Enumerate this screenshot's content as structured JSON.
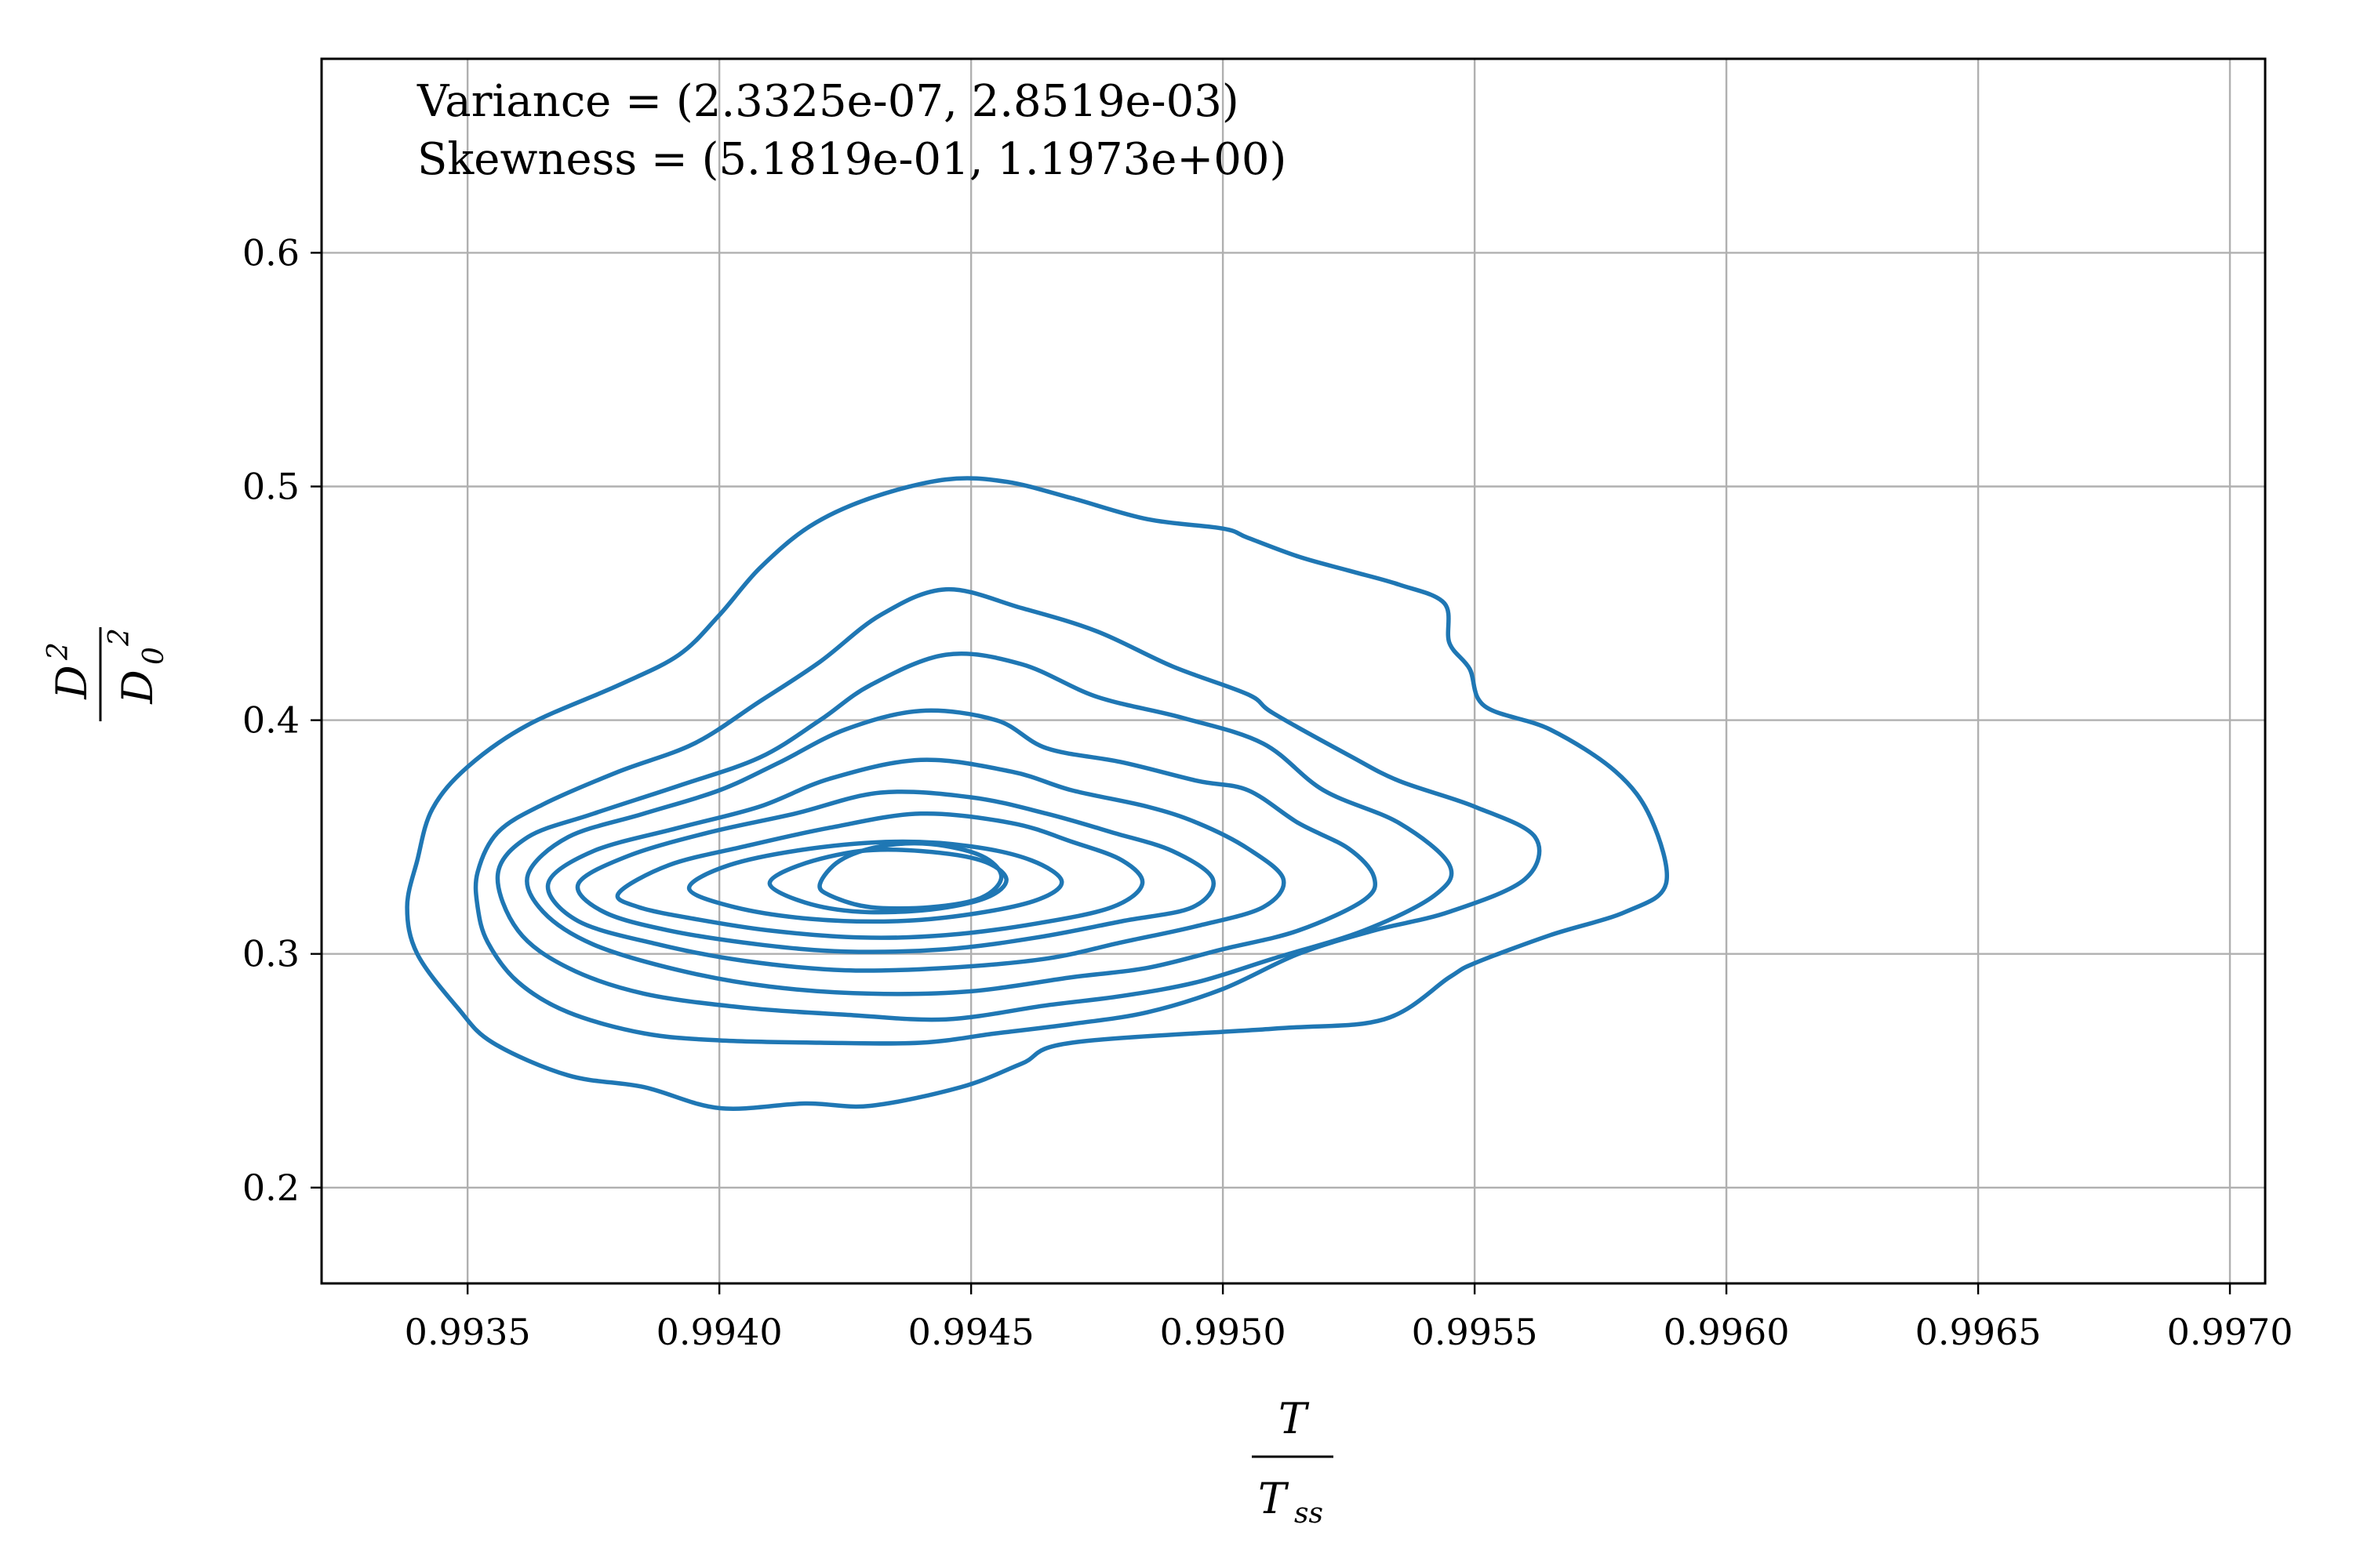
{
  "chart_data": {
    "type": "contour",
    "title": "",
    "xlabel": {
      "numerator": "T",
      "denominator": "T",
      "denominator_sub": "ss"
    },
    "ylabel": {
      "numerator": "D",
      "numerator_sup": "2",
      "denominator": "D",
      "denominator_sub": "0",
      "denominator_sup": "2"
    },
    "xlim": [
      0.99321,
      0.99707
    ],
    "ylim": [
      0.159,
      0.683
    ],
    "xticks": [
      0.9935,
      0.994,
      0.9945,
      0.995,
      0.9955,
      0.996,
      0.9965,
      0.997
    ],
    "xtick_labels": [
      "0.9935",
      "0.9940",
      "0.9945",
      "0.9950",
      "0.9955",
      "0.9960",
      "0.9965",
      "0.9970"
    ],
    "yticks": [
      0.2,
      0.3,
      0.4,
      0.5,
      0.6
    ],
    "ytick_labels": [
      "0.2",
      "0.3",
      "0.4",
      "0.5",
      "0.6"
    ],
    "grid": true,
    "annotations": [
      "Variance = (2.3325e-07, 2.8519e-03)",
      "Skewness = (5.1819e-01, 1.1973e+00)"
    ],
    "series_color": "#1f77b4",
    "contour_levels": [
      {
        "level": 1,
        "points": [
          [
            0.9934,
            0.34
          ],
          [
            0.99343,
            0.362
          ],
          [
            0.9935,
            0.38
          ],
          [
            0.99362,
            0.398
          ],
          [
            0.9938,
            0.415
          ],
          [
            0.99392,
            0.428
          ],
          [
            0.994,
            0.445
          ],
          [
            0.99408,
            0.465
          ],
          [
            0.99418,
            0.483
          ],
          [
            0.9943,
            0.495
          ],
          [
            0.99445,
            0.503
          ],
          [
            0.99457,
            0.502
          ],
          [
            0.9947,
            0.495
          ],
          [
            0.99485,
            0.486
          ],
          [
            0.995,
            0.482
          ],
          [
            0.99505,
            0.478
          ],
          [
            0.99515,
            0.47
          ],
          [
            0.99525,
            0.464
          ],
          [
            0.99535,
            0.458
          ],
          [
            0.99544,
            0.45
          ],
          [
            0.99545,
            0.433
          ],
          [
            0.99549,
            0.422
          ],
          [
            0.99552,
            0.406
          ],
          [
            0.99565,
            0.396
          ],
          [
            0.99578,
            0.378
          ],
          [
            0.99585,
            0.358
          ],
          [
            0.99588,
            0.33
          ],
          [
            0.9958,
            0.318
          ],
          [
            0.99565,
            0.308
          ],
          [
            0.9955,
            0.296
          ],
          [
            0.99545,
            0.29
          ],
          [
            0.99532,
            0.272
          ],
          [
            0.9951,
            0.268
          ],
          [
            0.9947,
            0.262
          ],
          [
            0.9946,
            0.253
          ],
          [
            0.99448,
            0.243
          ],
          [
            0.9943,
            0.235
          ],
          [
            0.99417,
            0.236
          ],
          [
            0.994,
            0.234
          ],
          [
            0.99385,
            0.243
          ],
          [
            0.9937,
            0.248
          ],
          [
            0.99355,
            0.262
          ],
          [
            0.99348,
            0.277
          ],
          [
            0.9934,
            0.3
          ],
          [
            0.99338,
            0.32
          ],
          [
            0.9934,
            0.34
          ]
        ]
      },
      {
        "level": 2,
        "points": [
          [
            0.99352,
            0.335
          ],
          [
            0.99356,
            0.352
          ],
          [
            0.99365,
            0.364
          ],
          [
            0.9938,
            0.378
          ],
          [
            0.99395,
            0.39
          ],
          [
            0.99408,
            0.408
          ],
          [
            0.9942,
            0.425
          ],
          [
            0.99432,
            0.445
          ],
          [
            0.99445,
            0.456
          ],
          [
            0.9946,
            0.448
          ],
          [
            0.99475,
            0.438
          ],
          [
            0.9949,
            0.423
          ],
          [
            0.99505,
            0.411
          ],
          [
            0.9951,
            0.403
          ],
          [
            0.99525,
            0.385
          ],
          [
            0.99535,
            0.374
          ],
          [
            0.9955,
            0.363
          ],
          [
            0.99562,
            0.35
          ],
          [
            0.9956,
            0.332
          ],
          [
            0.99545,
            0.318
          ],
          [
            0.9953,
            0.31
          ],
          [
            0.99515,
            0.3
          ],
          [
            0.995,
            0.285
          ],
          [
            0.99485,
            0.275
          ],
          [
            0.9947,
            0.27
          ],
          [
            0.99455,
            0.266
          ],
          [
            0.9944,
            0.262
          ],
          [
            0.9942,
            0.262
          ],
          [
            0.994,
            0.263
          ],
          [
            0.99385,
            0.266
          ],
          [
            0.9937,
            0.275
          ],
          [
            0.9936,
            0.288
          ],
          [
            0.99354,
            0.305
          ],
          [
            0.99352,
            0.32
          ],
          [
            0.99352,
            0.335
          ]
        ]
      },
      {
        "level": 3,
        "points": [
          [
            0.99356,
            0.334
          ],
          [
            0.99362,
            0.35
          ],
          [
            0.99375,
            0.36
          ],
          [
            0.99392,
            0.372
          ],
          [
            0.99408,
            0.384
          ],
          [
            0.9942,
            0.4
          ],
          [
            0.9943,
            0.415
          ],
          [
            0.99445,
            0.428
          ],
          [
            0.9946,
            0.424
          ],
          [
            0.99475,
            0.41
          ],
          [
            0.99492,
            0.401
          ],
          [
            0.99508,
            0.39
          ],
          [
            0.9952,
            0.37
          ],
          [
            0.99535,
            0.356
          ],
          [
            0.99545,
            0.338
          ],
          [
            0.99542,
            0.325
          ],
          [
            0.99528,
            0.31
          ],
          [
            0.9951,
            0.298
          ],
          [
            0.99495,
            0.288
          ],
          [
            0.9948,
            0.282
          ],
          [
            0.99465,
            0.278
          ],
          [
            0.99445,
            0.272
          ],
          [
            0.99425,
            0.274
          ],
          [
            0.99405,
            0.277
          ],
          [
            0.99385,
            0.283
          ],
          [
            0.9937,
            0.294
          ],
          [
            0.9936,
            0.31
          ],
          [
            0.99356,
            0.334
          ]
        ]
      },
      {
        "level": 4,
        "points": [
          [
            0.99362,
            0.334
          ],
          [
            0.9937,
            0.35
          ],
          [
            0.99385,
            0.36
          ],
          [
            0.994,
            0.37
          ],
          [
            0.99412,
            0.382
          ],
          [
            0.99425,
            0.396
          ],
          [
            0.9944,
            0.404
          ],
          [
            0.99455,
            0.4
          ],
          [
            0.99465,
            0.388
          ],
          [
            0.9948,
            0.382
          ],
          [
            0.99495,
            0.374
          ],
          [
            0.99505,
            0.37
          ],
          [
            0.99515,
            0.356
          ],
          [
            0.99525,
            0.345
          ],
          [
            0.9953,
            0.333
          ],
          [
            0.99528,
            0.323
          ],
          [
            0.99515,
            0.31
          ],
          [
            0.995,
            0.302
          ],
          [
            0.99485,
            0.294
          ],
          [
            0.9947,
            0.29
          ],
          [
            0.9945,
            0.284
          ],
          [
            0.9943,
            0.283
          ],
          [
            0.9941,
            0.286
          ],
          [
            0.99392,
            0.293
          ],
          [
            0.99375,
            0.304
          ],
          [
            0.99365,
            0.318
          ],
          [
            0.99362,
            0.334
          ]
        ]
      },
      {
        "level": 5,
        "points": [
          [
            0.99366,
            0.33
          ],
          [
            0.99375,
            0.344
          ],
          [
            0.99392,
            0.354
          ],
          [
            0.99408,
            0.363
          ],
          [
            0.99422,
            0.375
          ],
          [
            0.9944,
            0.383
          ],
          [
            0.99458,
            0.378
          ],
          [
            0.9947,
            0.37
          ],
          [
            0.99485,
            0.363
          ],
          [
            0.99495,
            0.356
          ],
          [
            0.99505,
            0.345
          ],
          [
            0.99512,
            0.332
          ],
          [
            0.99508,
            0.32
          ],
          [
            0.99495,
            0.312
          ],
          [
            0.9948,
            0.305
          ],
          [
            0.99465,
            0.298
          ],
          [
            0.99445,
            0.294
          ],
          [
            0.99425,
            0.293
          ],
          [
            0.99405,
            0.297
          ],
          [
            0.99388,
            0.304
          ],
          [
            0.99372,
            0.314
          ],
          [
            0.99366,
            0.33
          ]
        ]
      },
      {
        "level": 6,
        "points": [
          [
            0.99372,
            0.33
          ],
          [
            0.99382,
            0.342
          ],
          [
            0.99398,
            0.352
          ],
          [
            0.99415,
            0.36
          ],
          [
            0.99432,
            0.369
          ],
          [
            0.9945,
            0.367
          ],
          [
            0.99465,
            0.36
          ],
          [
            0.99478,
            0.352
          ],
          [
            0.9949,
            0.344
          ],
          [
            0.99498,
            0.332
          ],
          [
            0.99494,
            0.32
          ],
          [
            0.9948,
            0.314
          ],
          [
            0.99463,
            0.307
          ],
          [
            0.99445,
            0.302
          ],
          [
            0.99425,
            0.301
          ],
          [
            0.99408,
            0.304
          ],
          [
            0.9939,
            0.31
          ],
          [
            0.99377,
            0.318
          ],
          [
            0.99372,
            0.33
          ]
        ]
      },
      {
        "level": 7,
        "points": [
          [
            0.9938,
            0.326
          ],
          [
            0.9939,
            0.338
          ],
          [
            0.99405,
            0.346
          ],
          [
            0.99422,
            0.354
          ],
          [
            0.9944,
            0.36
          ],
          [
            0.99458,
            0.356
          ],
          [
            0.9947,
            0.348
          ],
          [
            0.9948,
            0.34
          ],
          [
            0.99484,
            0.33
          ],
          [
            0.99478,
            0.32
          ],
          [
            0.99463,
            0.313
          ],
          [
            0.99445,
            0.308
          ],
          [
            0.99428,
            0.307
          ],
          [
            0.9941,
            0.31
          ],
          [
            0.99395,
            0.315
          ],
          [
            0.99384,
            0.32
          ],
          [
            0.9938,
            0.326
          ]
        ]
      },
      {
        "level": 8,
        "points": [
          [
            0.99394,
            0.328
          ],
          [
            0.99402,
            0.338
          ],
          [
            0.99418,
            0.345
          ],
          [
            0.99435,
            0.348
          ],
          [
            0.9945,
            0.346
          ],
          [
            0.99462,
            0.34
          ],
          [
            0.99468,
            0.331
          ],
          [
            0.99463,
            0.323
          ],
          [
            0.9945,
            0.317
          ],
          [
            0.99435,
            0.314
          ],
          [
            0.99418,
            0.315
          ],
          [
            0.99403,
            0.32
          ],
          [
            0.99394,
            0.328
          ]
        ]
      },
      {
        "level": 9,
        "points": [
          [
            0.9941,
            0.33
          ],
          [
            0.99416,
            0.338
          ],
          [
            0.99428,
            0.344
          ],
          [
            0.9944,
            0.344
          ],
          [
            0.99452,
            0.34
          ],
          [
            0.99457,
            0.332
          ],
          [
            0.99453,
            0.324
          ],
          [
            0.99442,
            0.319
          ],
          [
            0.99428,
            0.318
          ],
          [
            0.99417,
            0.322
          ],
          [
            0.9941,
            0.33
          ]
        ]
      },
      {
        "level": 10,
        "points": [
          [
            0.9942,
            0.33
          ],
          [
            0.99424,
            0.34
          ],
          [
            0.99432,
            0.346
          ],
          [
            0.99442,
            0.347
          ],
          [
            0.99452,
            0.342
          ],
          [
            0.99456,
            0.333
          ],
          [
            0.99452,
            0.324
          ],
          [
            0.99442,
            0.32
          ],
          [
            0.9943,
            0.32
          ],
          [
            0.99422,
            0.325
          ],
          [
            0.9942,
            0.33
          ]
        ]
      }
    ]
  }
}
